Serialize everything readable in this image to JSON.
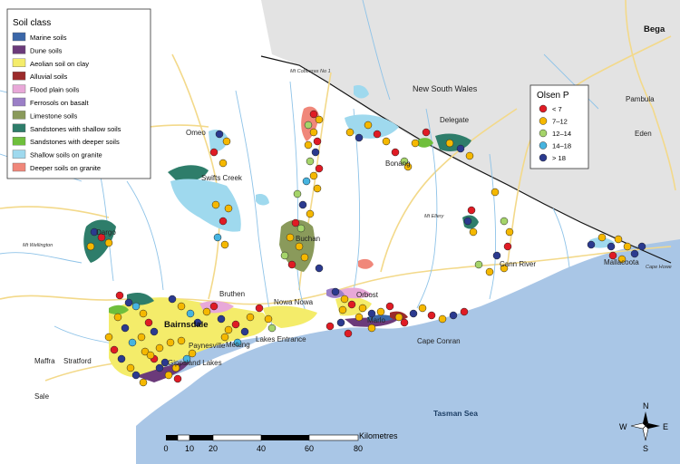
{
  "legend_soil": {
    "title": "Soil class",
    "items": [
      {
        "label": "Marine soils",
        "color": "#3b67a8"
      },
      {
        "label": "Dune soils",
        "color": "#6b3a7a"
      },
      {
        "label": "Aeolian soil on clay",
        "color": "#f4ec6a"
      },
      {
        "label": "Alluvial soils",
        "color": "#9c2b2b"
      },
      {
        "label": "Flood plain soils",
        "color": "#e8a8d8"
      },
      {
        "label": "Ferrosols on basalt",
        "color": "#9b7fc7"
      },
      {
        "label": "Limestone soils",
        "color": "#8a9a5b"
      },
      {
        "label": "Sandstones with shallow soils",
        "color": "#2e7d6a"
      },
      {
        "label": "Sandstones with deeper soils",
        "color": "#6fbf3c"
      },
      {
        "label": "Shallow soils on granite",
        "color": "#9fd9ee"
      },
      {
        "label": "Deeper soils on granite",
        "color": "#f0877a"
      }
    ]
  },
  "legend_olsen": {
    "title": "Olsen P",
    "items": [
      {
        "label": "< 7",
        "color": "#e01b24"
      },
      {
        "label": "7–12",
        "color": "#f5b800"
      },
      {
        "label": "12–14",
        "color": "#a5d46a"
      },
      {
        "label": "14–18",
        "color": "#46b4e0"
      },
      {
        "label": "> 18",
        "color": "#2b3a8f"
      }
    ]
  },
  "places": {
    "bega": "Bega",
    "pambula": "Pambula",
    "eden": "Eden",
    "delegate": "Delegate",
    "bonang": "Bonang",
    "omeo": "Omeo",
    "swifts_creek": "Swifts Creek",
    "dargo": "Dargo",
    "buchan": "Buchan",
    "bruthen": "Bruthen",
    "nowa_nowa": "Nowa Nowa",
    "orbost": "Orbost",
    "marlo": "Marlo",
    "cann_river": "Cann River",
    "mallacoota": "Mallacoota",
    "bairnsdale": "Bairnsdale",
    "paynesville": "Paynesville",
    "metung": "Metung",
    "lakes_entrance": "Lakes Entrance",
    "gippsland_lakes": "Gippsland Lakes",
    "maffra": "Maffra",
    "stratford": "Stratford",
    "sale": "Sale",
    "cape_conran": "Cape Conran",
    "cape_howe": "Cape Howe"
  },
  "features": {
    "mt_cobberas": "Mt Cobberas No 1",
    "mt_wellington": "Mt Wellington",
    "mt_ellery": "Mt Ellery"
  },
  "regions": {
    "nsw": "New South Wales",
    "tasman_sea": "Tasman Sea"
  },
  "scale_bar": {
    "unit": "Kilometres",
    "ticks": [
      "0",
      "10",
      "20",
      "40",
      "60",
      "80"
    ]
  },
  "compass": {
    "n": "N",
    "s": "S",
    "e": "E",
    "w": "W"
  }
}
